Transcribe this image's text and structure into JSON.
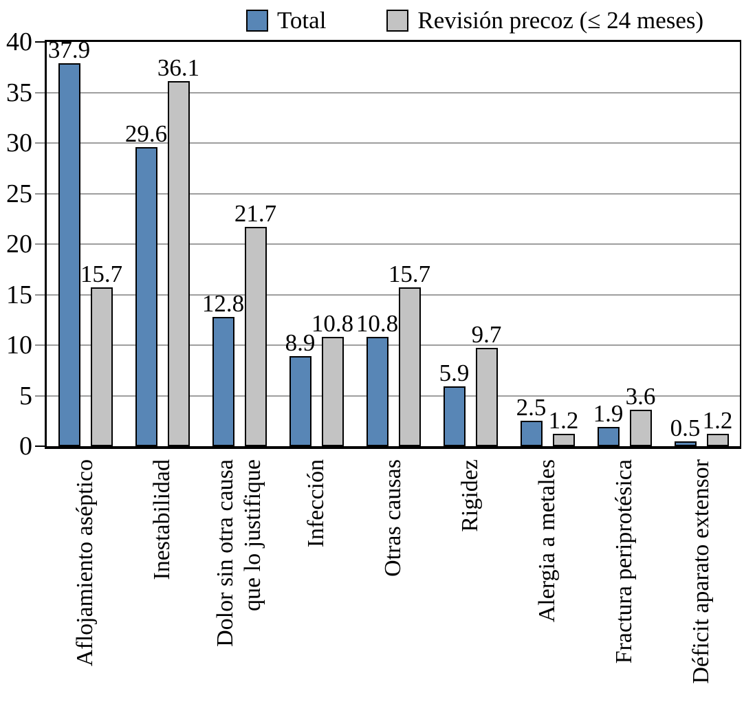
{
  "chart_data": {
    "type": "bar",
    "categories": [
      "Aflojamiento aséptico",
      "Inestabilidad",
      "Dolor sin otra causa\nque lo justifique",
      "Infección",
      "Otras causas",
      "Rigidez",
      "Alergia a metales",
      "Fractura periprotésica",
      "Déficit aparato extensor"
    ],
    "series": [
      {
        "name": "Total",
        "color": "#5886b6",
        "values": [
          37.9,
          29.6,
          12.8,
          8.9,
          10.8,
          5.9,
          2.5,
          1.9,
          0.5
        ]
      },
      {
        "name": "Revisión precoz (≤ 24 meses)",
        "color": "#c3c3c3",
        "values": [
          15.7,
          36.1,
          21.7,
          10.8,
          15.7,
          9.7,
          1.2,
          3.6,
          1.2
        ]
      }
    ],
    "title": "",
    "xlabel": "",
    "ylabel": "",
    "ylim": [
      0,
      40
    ],
    "yticks": [
      0,
      5,
      10,
      15,
      20,
      25,
      30,
      35,
      40
    ],
    "grid": true,
    "legend_position": "top",
    "value_labels": true,
    "bar_border_color": "#000000",
    "gridline_color": "#9e9e9e",
    "axis_color": "#000000"
  }
}
